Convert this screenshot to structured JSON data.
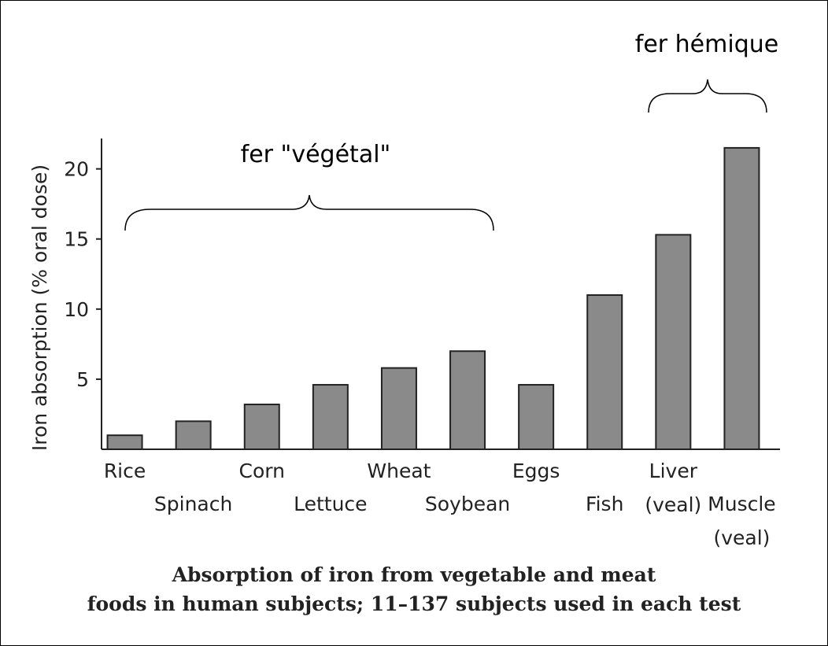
{
  "chart_data": {
    "type": "bar",
    "caption": [
      "Absorption of iron from vegetable and meat",
      "foods in human subjects; 11–137 subjects used in each test"
    ],
    "y_label": "Iron absorption (% oral dose)",
    "annotations": [
      "fer \"végétal\"",
      "fer hémique"
    ],
    "categories": [
      "Rice",
      "Spinach",
      "Corn",
      "Lettuce",
      "Wheat",
      "Soybean",
      "Eggs",
      "Fish",
      "Liver (veal)",
      "Muscle (veal)"
    ],
    "values": [
      1.0,
      2.0,
      3.2,
      4.6,
      5.8,
      7.0,
      4.6,
      11.0,
      15.3,
      21.5
    ],
    "color": "#8a8a8a",
    "ylim": [
      0,
      22
    ],
    "yticks": [
      5,
      10,
      15,
      20
    ],
    "grid": false
  }
}
